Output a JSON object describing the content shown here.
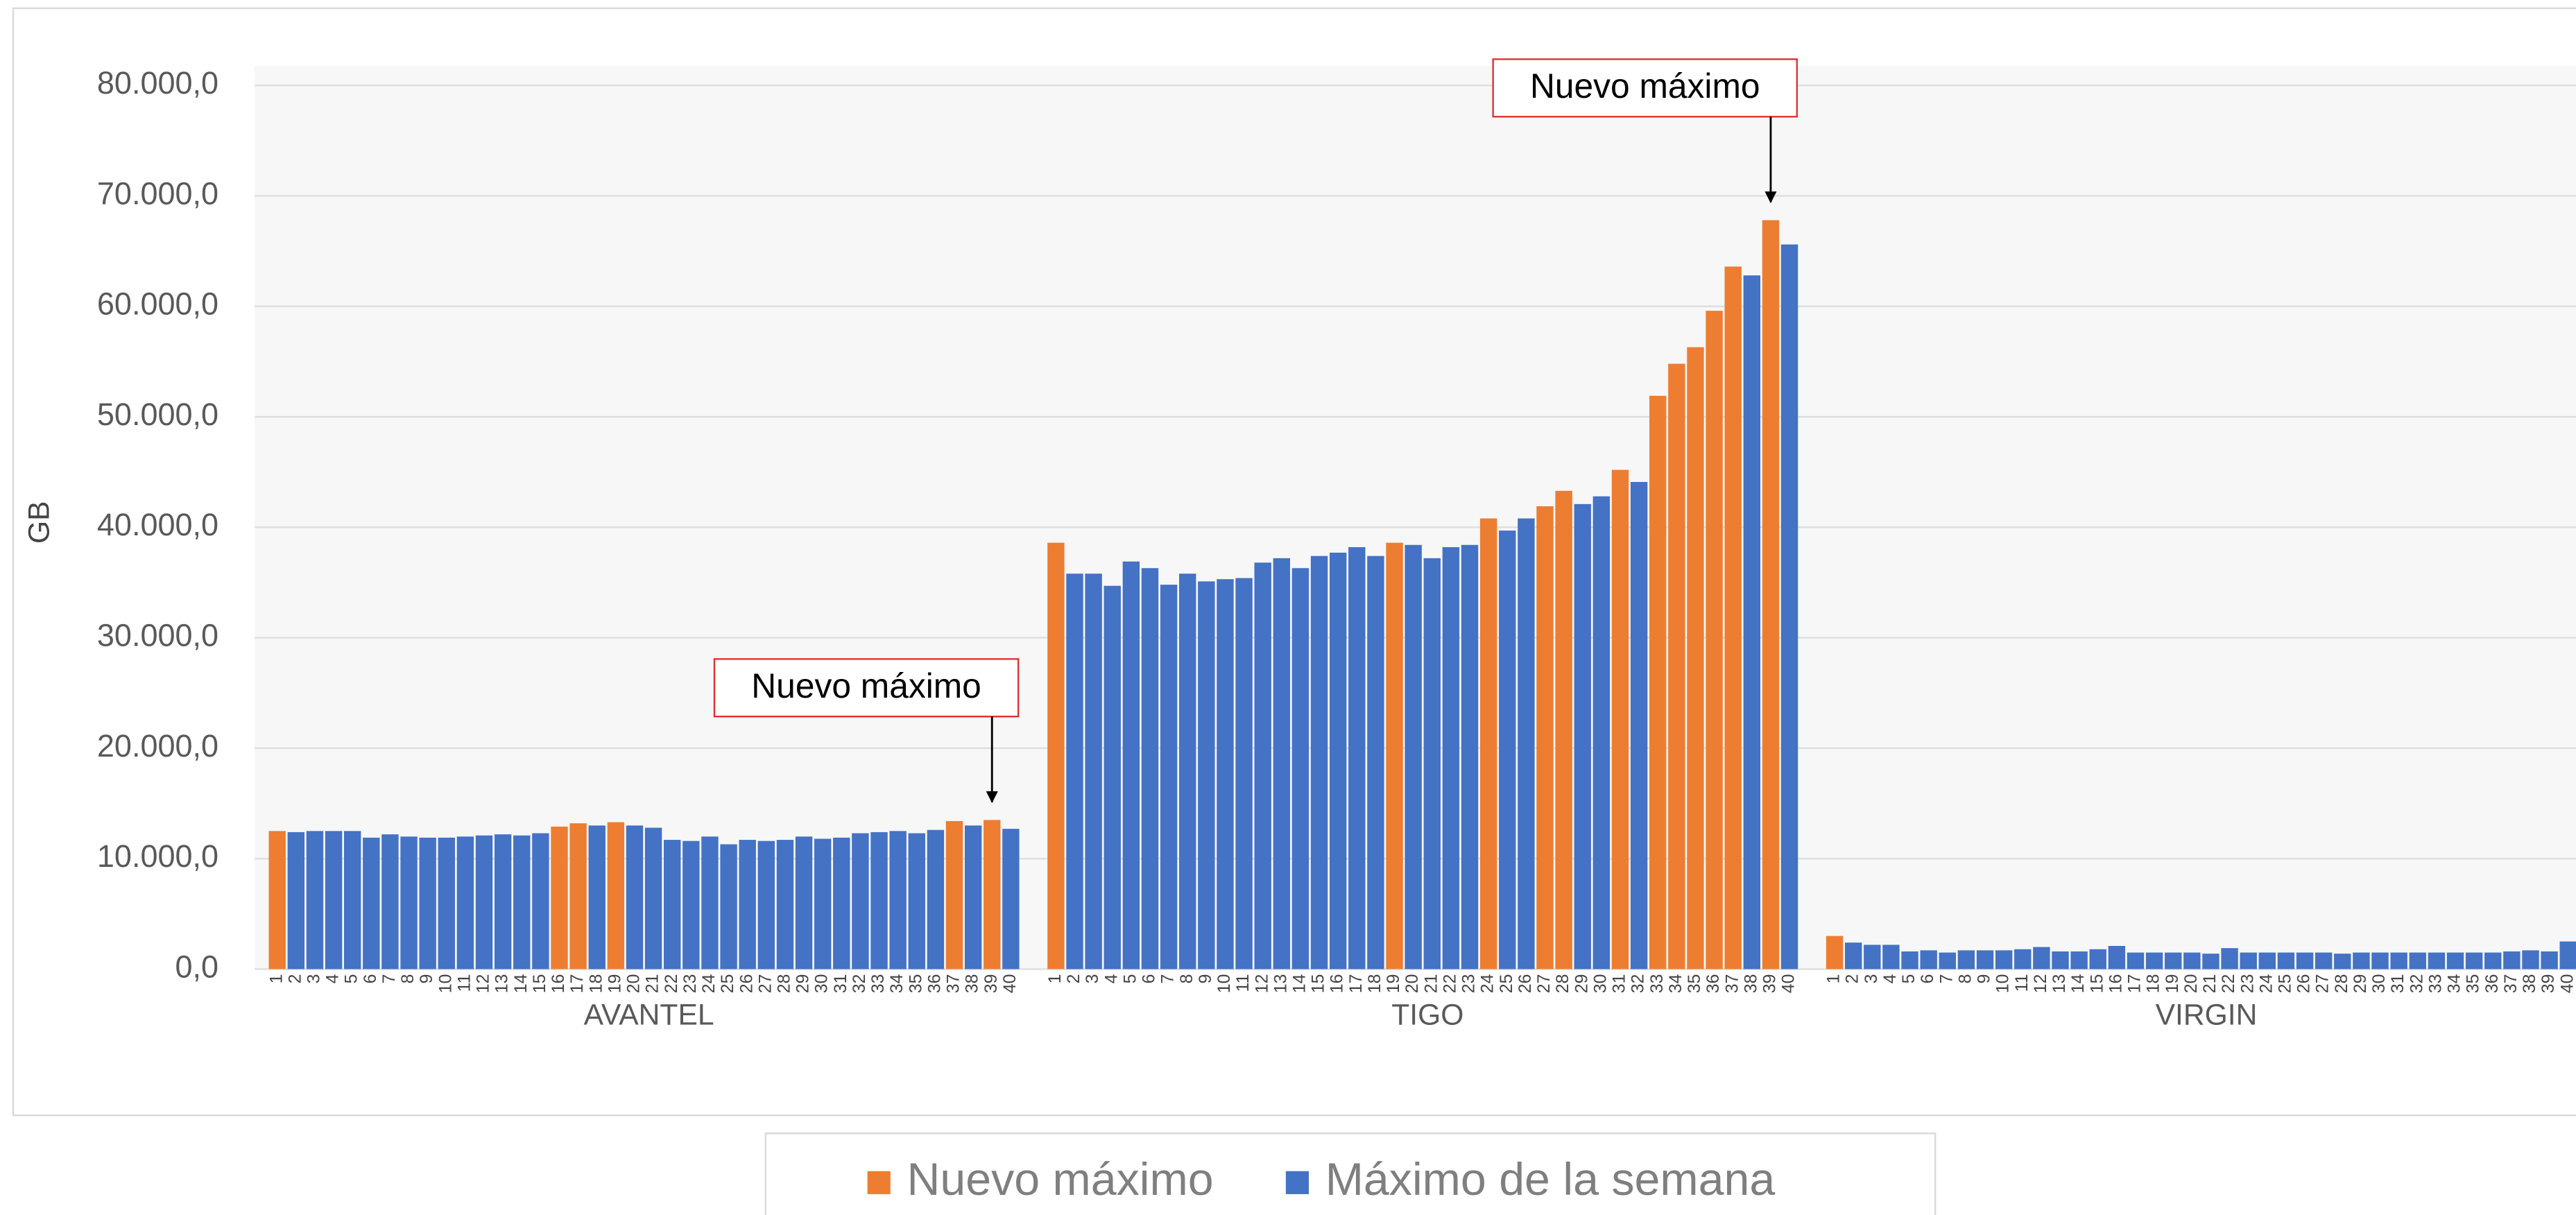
{
  "chart_data": {
    "type": "bar",
    "ylabel": "GB",
    "ylim": [
      0,
      80000
    ],
    "yticks": [
      {
        "value": 0,
        "label": "0,0"
      },
      {
        "value": 10000,
        "label": "10.000,0"
      },
      {
        "value": 20000,
        "label": "20.000,0"
      },
      {
        "value": 30000,
        "label": "30.000,0"
      },
      {
        "value": 40000,
        "label": "40.000,0"
      },
      {
        "value": 50000,
        "label": "50.000,0"
      },
      {
        "value": 60000,
        "label": "60.000,0"
      },
      {
        "value": 70000,
        "label": "70.000,0"
      },
      {
        "value": 80000,
        "label": "80.000,0"
      }
    ],
    "grid": true,
    "groups": [
      {
        "name": "AVANTEL",
        "categories": [
          1,
          2,
          3,
          4,
          5,
          6,
          7,
          8,
          9,
          10,
          11,
          12,
          13,
          14,
          15,
          16,
          17,
          18,
          19,
          20,
          21,
          22,
          23,
          24,
          25,
          26,
          27,
          28,
          29,
          30,
          31,
          32,
          33,
          34,
          35,
          36,
          37,
          38,
          39,
          40
        ]
      },
      {
        "name": "TIGO",
        "categories": [
          1,
          2,
          3,
          4,
          5,
          6,
          7,
          8,
          9,
          10,
          11,
          12,
          13,
          14,
          15,
          16,
          17,
          18,
          19,
          20,
          21,
          22,
          23,
          24,
          25,
          26,
          27,
          28,
          29,
          30,
          31,
          32,
          33,
          34,
          35,
          36,
          37,
          38,
          39,
          40
        ]
      },
      {
        "name": "VIRGIN",
        "categories": [
          1,
          2,
          3,
          4,
          5,
          6,
          7,
          8,
          9,
          10,
          11,
          12,
          13,
          14,
          15,
          16,
          17,
          18,
          19,
          20,
          21,
          22,
          23,
          24,
          25,
          26,
          27,
          28,
          29,
          30,
          31,
          32,
          33,
          34,
          35,
          36,
          37,
          38,
          39,
          40
        ]
      }
    ],
    "series": [
      {
        "name": "Nuevo máximo",
        "color": "#ed7d31",
        "values": [
          [
            12500,
            null,
            null,
            null,
            null,
            null,
            null,
            null,
            null,
            null,
            null,
            null,
            null,
            null,
            null,
            12900,
            13200,
            null,
            13300,
            null,
            null,
            null,
            null,
            null,
            null,
            null,
            null,
            null,
            null,
            null,
            null,
            null,
            null,
            null,
            null,
            null,
            13400,
            null,
            13500,
            null
          ],
          [
            38600,
            null,
            null,
            null,
            null,
            null,
            null,
            null,
            null,
            null,
            null,
            null,
            null,
            null,
            null,
            null,
            null,
            null,
            38600,
            null,
            null,
            null,
            null,
            40800,
            null,
            null,
            41900,
            43300,
            null,
            null,
            45200,
            null,
            51900,
            54800,
            56300,
            59600,
            63600,
            null,
            67800,
            null
          ],
          [
            3000,
            null,
            null,
            null,
            null,
            null,
            null,
            null,
            null,
            null,
            null,
            null,
            null,
            null,
            null,
            null,
            null,
            null,
            null,
            null,
            null,
            null,
            null,
            null,
            null,
            null,
            null,
            null,
            null,
            null,
            null,
            null,
            null,
            null,
            null,
            null,
            null,
            null,
            null,
            null
          ]
        ]
      },
      {
        "name": "Máximo de la semana",
        "color": "#4472c4",
        "values": [
          [
            null,
            12400,
            12500,
            12500,
            12500,
            11900,
            12200,
            12000,
            11900,
            11900,
            12000,
            12100,
            12200,
            12100,
            12300,
            null,
            null,
            13000,
            null,
            13000,
            12800,
            11700,
            11600,
            12000,
            11300,
            11700,
            11600,
            11700,
            12000,
            11800,
            11900,
            12300,
            12400,
            12500,
            12300,
            12600,
            null,
            13000,
            null,
            12700
          ],
          [
            null,
            35800,
            35800,
            34700,
            36900,
            36300,
            34800,
            35800,
            35100,
            35300,
            35400,
            36800,
            37200,
            36300,
            37400,
            37700,
            38200,
            37400,
            null,
            38400,
            37200,
            38200,
            38400,
            null,
            39700,
            40800,
            null,
            null,
            42100,
            42800,
            null,
            44100,
            null,
            null,
            null,
            null,
            null,
            62800,
            null,
            65600
          ],
          [
            null,
            2400,
            2200,
            2200,
            1600,
            1700,
            1500,
            1700,
            1700,
            1700,
            1800,
            2000,
            1600,
            1600,
            1800,
            2100,
            1500,
            1500,
            1500,
            1500,
            1400,
            1900,
            1500,
            1500,
            1500,
            1500,
            1500,
            1400,
            1500,
            1500,
            1500,
            1500,
            1500,
            1500,
            1500,
            1500,
            1600,
            1700,
            1600,
            2500
          ]
        ]
      }
    ],
    "annotations": [
      {
        "text": "Nuevo máximo",
        "group": "AVANTEL",
        "category": 39
      },
      {
        "text": "Nuevo máximo",
        "group": "TIGO",
        "category": 39
      }
    ]
  }
}
